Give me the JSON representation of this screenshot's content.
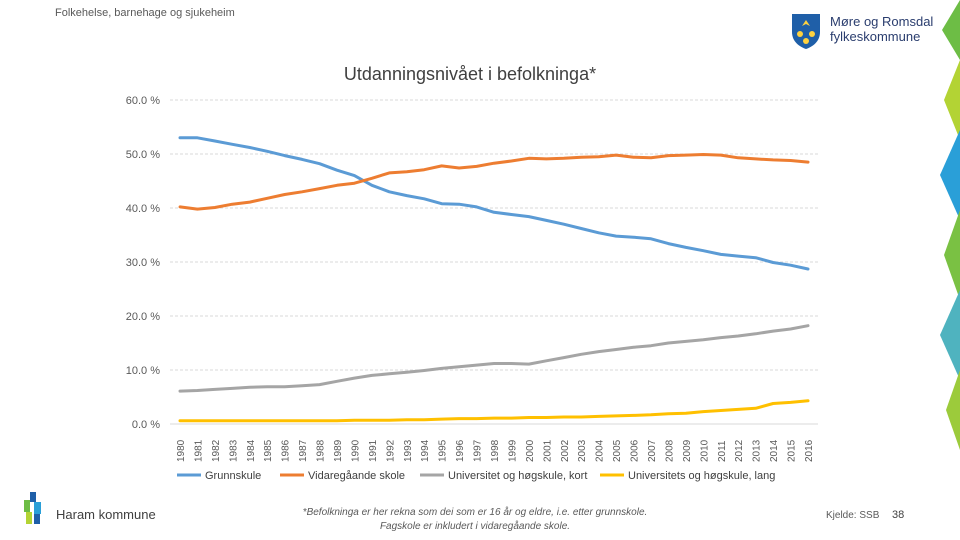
{
  "header": {
    "section": "Folkehelse, barnehage og sjukeheim",
    "logo_line1": "Møre og Romsdal",
    "logo_line2": "fylkeskommune"
  },
  "colors": {
    "grunnskule": "#5b9bd5",
    "vidaregaande": "#ed7d31",
    "universitet_kort": "#a5a5a5",
    "universitet_lang": "#ffc000",
    "logo_blue": "#2a3d6e"
  },
  "chart_data": {
    "type": "line",
    "title": "Utdanningsnivået i befolkninga*",
    "xlabel": "",
    "ylabel": "",
    "ylim": [
      0,
      60
    ],
    "yticks": [
      "0.0 %",
      "10.0 %",
      "20.0 %",
      "30.0 %",
      "40.0 %",
      "50.0 %",
      "60.0 %"
    ],
    "grid": true,
    "legend_position": "bottom",
    "categories": [
      "1980",
      "1981",
      "1982",
      "1983",
      "1984",
      "1985",
      "1986",
      "1987",
      "1988",
      "1989",
      "1990",
      "1991",
      "1992",
      "1993",
      "1994",
      "1995",
      "1996",
      "1997",
      "1998",
      "1999",
      "2000",
      "2001",
      "2002",
      "2003",
      "2004",
      "2005",
      "2006",
      "2007",
      "2008",
      "2009",
      "2010",
      "2011",
      "2012",
      "2013",
      "2014",
      "2015",
      "2016"
    ],
    "series": [
      {
        "name": "Grunnskule",
        "color": "#5b9bd5",
        "values": [
          53.0,
          53.0,
          52.4,
          51.8,
          51.2,
          50.5,
          49.7,
          49.0,
          48.2,
          47.0,
          46.0,
          44.2,
          43.0,
          42.3,
          41.7,
          40.8,
          40.7,
          40.2,
          39.2,
          38.8,
          38.4,
          37.7,
          37.0,
          36.2,
          35.4,
          34.8,
          34.6,
          34.3,
          33.4,
          32.7,
          32.1,
          31.4,
          31.1,
          30.8,
          29.9,
          29.4,
          28.7
        ]
      },
      {
        "name": "Vidaregåande skole",
        "color": "#ed7d31",
        "values": [
          40.2,
          39.8,
          40.1,
          40.7,
          41.1,
          41.8,
          42.5,
          43.0,
          43.6,
          44.2,
          44.6,
          45.5,
          46.5,
          46.7,
          47.1,
          47.8,
          47.4,
          47.7,
          48.3,
          48.7,
          49.2,
          49.1,
          49.2,
          49.4,
          49.5,
          49.8,
          49.4,
          49.3,
          49.7,
          49.8,
          49.9,
          49.8,
          49.3,
          49.1,
          48.9,
          48.8,
          48.5
        ]
      },
      {
        "name": "Universitet og høgskule, kort",
        "color": "#a5a5a5",
        "values": [
          6.1,
          6.2,
          6.4,
          6.6,
          6.8,
          6.9,
          6.9,
          7.1,
          7.3,
          7.9,
          8.5,
          9.0,
          9.3,
          9.6,
          9.9,
          10.3,
          10.6,
          10.9,
          11.2,
          11.2,
          11.1,
          11.7,
          12.3,
          12.9,
          13.4,
          13.8,
          14.2,
          14.5,
          15.0,
          15.3,
          15.6,
          16.0,
          16.3,
          16.7,
          17.2,
          17.6,
          18.2
        ]
      },
      {
        "name": "Universitets og høgskule, lang",
        "color": "#ffc000",
        "values": [
          0.6,
          0.6,
          0.6,
          0.6,
          0.6,
          0.6,
          0.6,
          0.6,
          0.6,
          0.6,
          0.7,
          0.7,
          0.7,
          0.8,
          0.8,
          0.9,
          1.0,
          1.0,
          1.1,
          1.1,
          1.2,
          1.2,
          1.3,
          1.3,
          1.4,
          1.5,
          1.6,
          1.7,
          1.9,
          2.0,
          2.3,
          2.5,
          2.7,
          2.9,
          3.8,
          4.0,
          4.3
        ]
      }
    ]
  },
  "footer": {
    "municipality": "Haram kommune",
    "footnote_line1": "*Befolkninga er her rekna som dei som er 16 år og eldre, i.e. etter grunnskole.",
    "footnote_line2": "Fagskole er inkludert i vidaregåande skole.",
    "source": "Kjelde: SSB",
    "page_number": "38"
  }
}
